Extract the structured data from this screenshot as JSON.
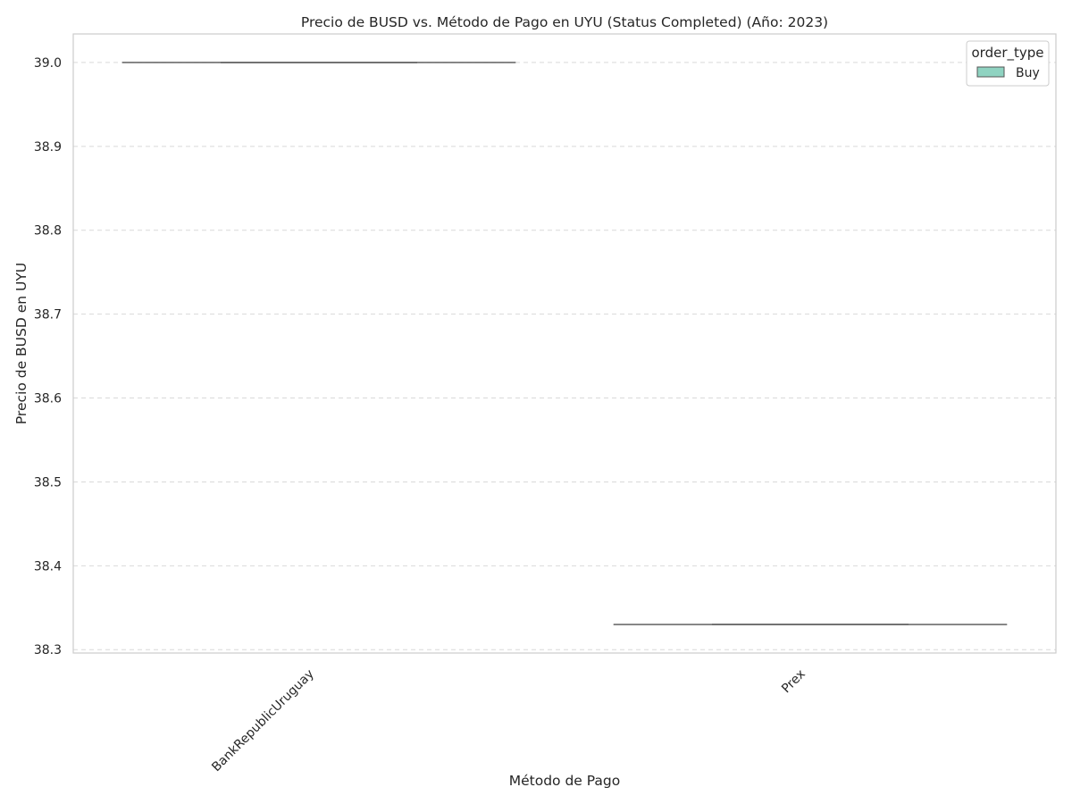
{
  "chart_data": {
    "type": "box",
    "title": "Precio de BUSD vs. Método de Pago en UYU (Status Completed) (Año: 2023)",
    "xlabel": "Método de Pago",
    "ylabel": "Precio de BUSD en UYU",
    "categories": [
      "BankRepublicUruguay",
      "Prex"
    ],
    "series": [
      {
        "name": "Buy",
        "color": "#8fd3c1",
        "values": [
          {
            "min": 39.0,
            "q1": 39.0,
            "median": 39.0,
            "q3": 39.0,
            "max": 39.0
          },
          {
            "min": 38.33,
            "q1": 38.33,
            "median": 38.33,
            "q3": 38.33,
            "max": 38.33
          }
        ]
      }
    ],
    "ylim": [
      38.296,
      39.034
    ],
    "yticks": [
      "38.3",
      "38.4",
      "38.5",
      "38.6",
      "38.7",
      "38.8",
      "38.9",
      "39.0"
    ],
    "grid": true,
    "legend": {
      "title": "order_type",
      "placement": "top-right",
      "entries": [
        "Buy"
      ]
    },
    "colors": {
      "box_line": "#6e6e6e",
      "grid": "#d9d9d9",
      "frame": "#cccccc"
    }
  }
}
